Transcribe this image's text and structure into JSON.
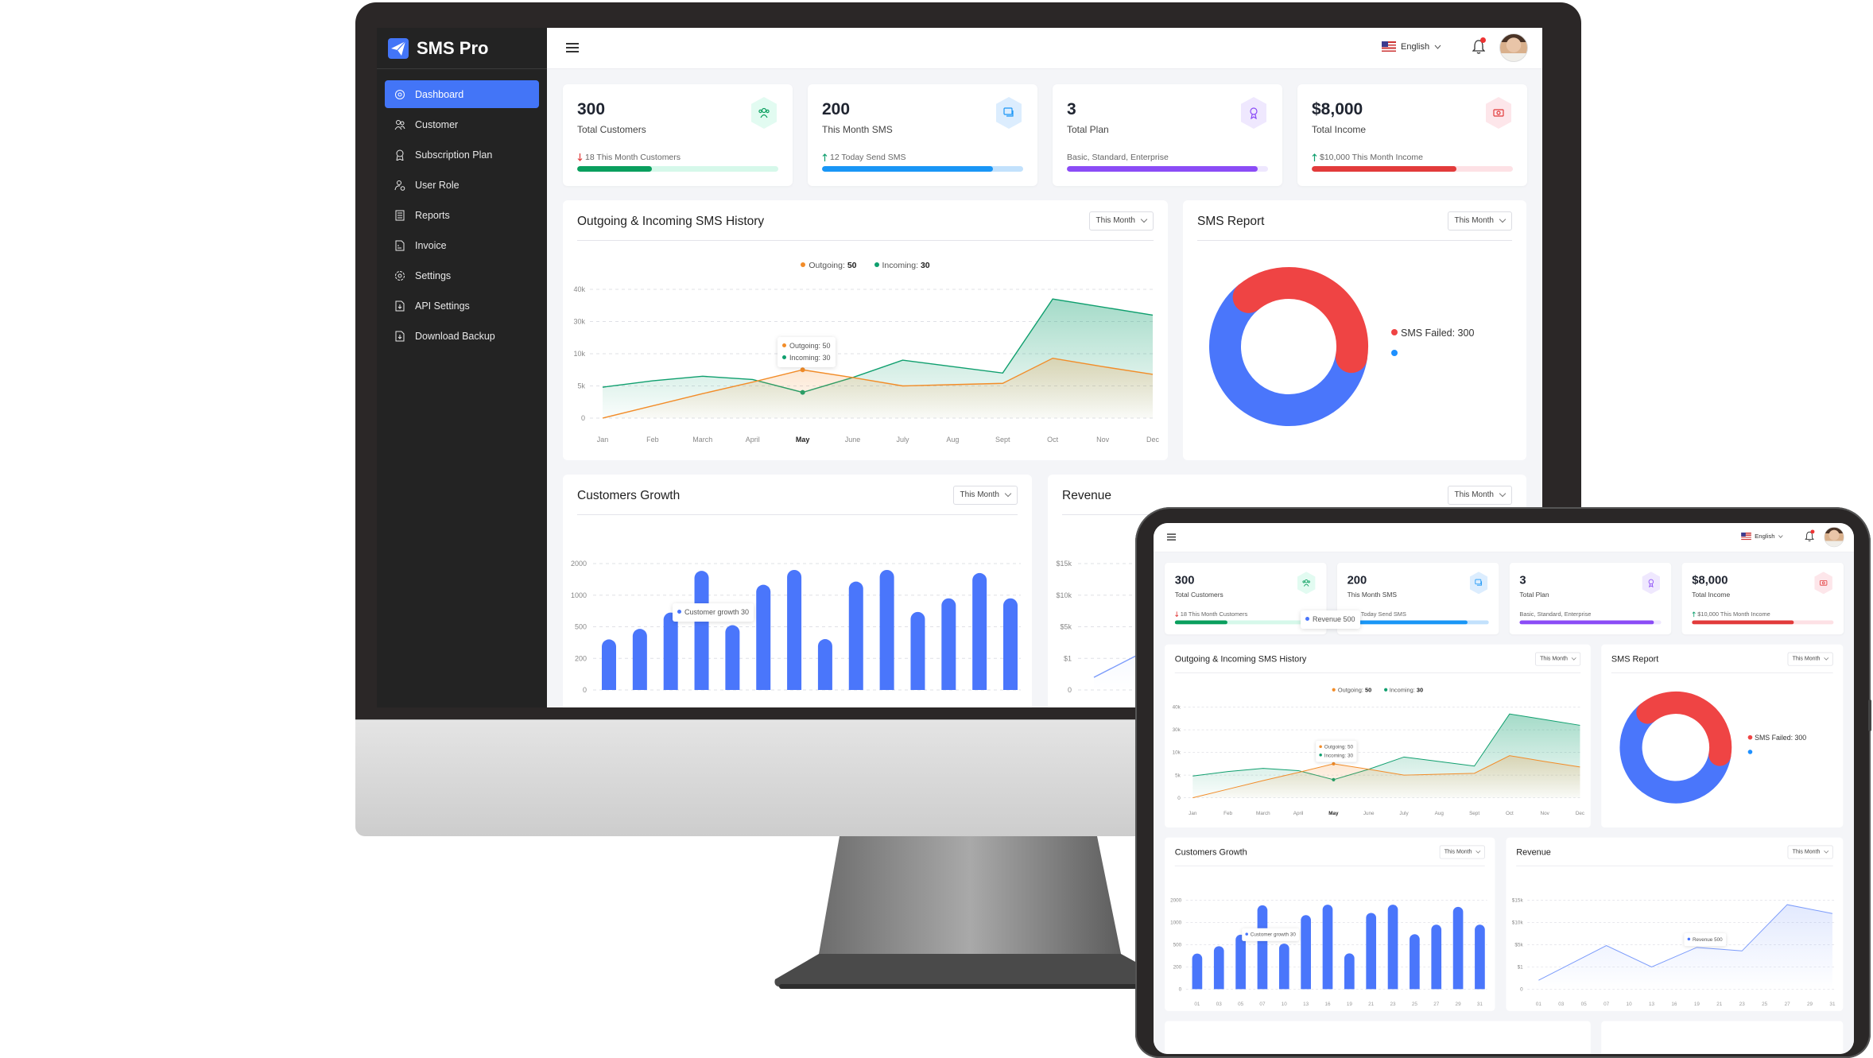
{
  "app": {
    "name": "SMS Pro"
  },
  "sidebar": {
    "items": [
      {
        "label": "Dashboard",
        "icon": "dashboard-icon",
        "active": true
      },
      {
        "label": "Customer",
        "icon": "customer-icon"
      },
      {
        "label": "Subscription Plan",
        "icon": "subscription-icon"
      },
      {
        "label": "User Role",
        "icon": "user-role-icon"
      },
      {
        "label": "Reports",
        "icon": "reports-icon"
      },
      {
        "label": "Invoice",
        "icon": "invoice-icon"
      },
      {
        "label": "Settings",
        "icon": "settings-icon"
      },
      {
        "label": "API Settings",
        "icon": "api-settings-icon"
      },
      {
        "label": "Download Backup",
        "icon": "download-backup-icon"
      }
    ]
  },
  "header": {
    "language": "English",
    "notifications": true
  },
  "stats": [
    {
      "value": "300",
      "label": "Total Customers",
      "sub": "18 This Month Customers",
      "trend": "down",
      "progress": 0.37,
      "color": "#0a9f5e",
      "track": "#d6f8ea",
      "icon_bg": "#e2fbf1",
      "icon": "users-icon"
    },
    {
      "value": "200",
      "label": "This Month SMS",
      "sub": "12 Today Send SMS",
      "trend": "up",
      "progress": 0.85,
      "color": "#1996f6",
      "track": "#c2e1fc",
      "icon_bg": "#dcedfe",
      "icon": "chat-icon"
    },
    {
      "value": "3",
      "label": "Total Plan",
      "sub": "Basic, Standard, Enterprise",
      "trend": "none",
      "progress": 0.95,
      "color": "#8b4cf6",
      "track": "#eee7fe",
      "icon_bg": "#efe8fe",
      "icon": "award-icon"
    },
    {
      "value": "$8,000",
      "label": "Total Income",
      "sub": "$10,000 This Month Income",
      "trend": "up",
      "progress": 0.72,
      "color": "#e23b3b",
      "track": "#fde1e5",
      "icon_bg": "#fde6ea",
      "icon": "money-icon"
    }
  ],
  "filter_label": "This Month",
  "chart_data": [
    {
      "type": "area",
      "title": "Outgoing & Incoming SMS History",
      "categories": [
        "Jan",
        "Feb",
        "March",
        "April",
        "May",
        "June",
        "July",
        "Aug",
        "Sept",
        "Oct",
        "Nov",
        "Dec"
      ],
      "highlight": "May",
      "yticks": [
        "0",
        "5k",
        "10k",
        "30k",
        "40k"
      ],
      "ytick_values": [
        0,
        5000,
        10000,
        30000,
        40000
      ],
      "series": [
        {
          "name": "Outgoing",
          "legend_value": "50",
          "color": "#f28c28",
          "values": [
            0,
            1900,
            3800,
            5600,
            7500,
            6300,
            5000,
            5200,
            5400,
            9300,
            8000,
            6800
          ]
        },
        {
          "name": "Incoming",
          "legend_value": "30",
          "color": "#0f9f6e",
          "values": [
            4800,
            5800,
            6500,
            6000,
            4000,
            6300,
            9000,
            8000,
            7000,
            37000,
            34500,
            32000
          ]
        }
      ],
      "tooltip": {
        "outgoing": "Outgoing: 50",
        "incoming": "Incoming: 30"
      },
      "legend": {
        "outgoing": "Outgoing:",
        "incoming": "Incoming:"
      },
      "grid": true
    },
    {
      "type": "pie",
      "title": "SMS Report",
      "donut": true,
      "series": [
        {
          "name": "SMS Failed",
          "label": "SMS Failed: 300",
          "value": 300,
          "color": "#ef4444"
        },
        {
          "name": "",
          "value": 480,
          "color": "#4a76fb"
        }
      ],
      "legend_marker_colors": [
        "#ef4444",
        "#1e90ff"
      ]
    },
    {
      "type": "bar",
      "title": "Customers Growth",
      "categories": [
        "01",
        "03",
        "05",
        "07",
        "10",
        "13",
        "16",
        "19",
        "21",
        "23",
        "25",
        "27",
        "29",
        "31"
      ],
      "yticks": [
        "0",
        "200",
        "500",
        "1000",
        "2000"
      ],
      "ytick_values": [
        0,
        200,
        500,
        1000,
        2000
      ],
      "values": [
        380,
        480,
        725,
        1770,
        525,
        1330,
        1800,
        383,
        1430,
        1800,
        735,
        950,
        1700,
        950
      ],
      "color": "#4a76fb",
      "tooltip": "Customer growth  30",
      "grid": true
    },
    {
      "type": "line",
      "title": "Revenue",
      "categories": [
        "01",
        "03",
        "05",
        "07",
        "10",
        "13",
        "16",
        "19",
        "21",
        "23",
        "25",
        "27",
        "29",
        "31"
      ],
      "yticks": [
        "0",
        "$1",
        "$5k",
        "$10k",
        "$15k"
      ],
      "ytick_values": [
        0,
        1,
        5000,
        10000,
        15000
      ],
      "points": [
        [
          "01",
          0.4
        ],
        [
          "07",
          4800
        ],
        [
          "13",
          1
        ],
        [
          "19",
          4400
        ],
        [
          "23",
          3600
        ],
        [
          "27",
          14000
        ],
        [
          "31",
          12000
        ]
      ],
      "color": "#7b9bfb",
      "tooltip": "Revenue  500",
      "grid": true
    }
  ]
}
